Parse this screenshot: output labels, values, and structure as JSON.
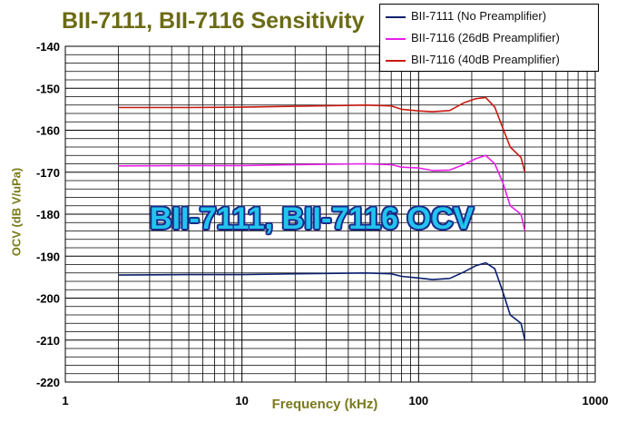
{
  "chart_data": {
    "type": "line",
    "title": "BII-7111, BII-7116 Sensitivity",
    "xlabel": "Frequency (kHz)",
    "ylabel": "OCV (dB V/uPa)",
    "annotation": "BII-7111, BII-7116 OCV",
    "x_scale": "log",
    "xlim": [
      1,
      1000
    ],
    "ylim": [
      -220,
      -140
    ],
    "x_ticks": [
      "1",
      "10",
      "100",
      "1000"
    ],
    "y_ticks": [
      "-140",
      "-150",
      "-160",
      "-170",
      "-180",
      "-190",
      "-200",
      "-210",
      "-220"
    ],
    "grid": true,
    "legend_position": "top-right",
    "series": [
      {
        "name": "BII-7111 (No Preamplifier)",
        "color": "#0a1f6e",
        "x": [
          2,
          5,
          10,
          20,
          50,
          70,
          80,
          100,
          120,
          150,
          180,
          210,
          240,
          270,
          300,
          330,
          380,
          400
        ],
        "y": [
          -194.5,
          -194.4,
          -194.4,
          -194.2,
          -194.0,
          -194.2,
          -194.8,
          -195.2,
          -195.6,
          -195.3,
          -193.8,
          -192.3,
          -191.6,
          -193.0,
          -198.5,
          -204.0,
          -206.0,
          -210.0
        ]
      },
      {
        "name": "BII-7116 (26dB Preamplifier)",
        "color": "#e81ee8",
        "x": [
          2,
          5,
          10,
          20,
          50,
          70,
          80,
          100,
          120,
          150,
          180,
          210,
          240,
          270,
          300,
          330,
          380,
          400
        ],
        "y": [
          -168.5,
          -168.4,
          -168.4,
          -168.2,
          -168.0,
          -168.2,
          -168.8,
          -169.0,
          -169.6,
          -169.5,
          -168.2,
          -166.8,
          -166.0,
          -168.0,
          -172.5,
          -178.0,
          -180.0,
          -184.0
        ]
      },
      {
        "name": "BII-7116 (40dB Preamplifier)",
        "color": "#c81a10",
        "x": [
          2,
          5,
          10,
          20,
          50,
          70,
          80,
          100,
          120,
          150,
          180,
          210,
          240,
          270,
          300,
          330,
          380,
          400
        ],
        "y": [
          -154.6,
          -154.6,
          -154.5,
          -154.3,
          -154.0,
          -154.2,
          -155.0,
          -155.4,
          -155.6,
          -155.3,
          -153.5,
          -152.5,
          -152.2,
          -154.5,
          -159.5,
          -164.0,
          -166.5,
          -170.0
        ]
      }
    ]
  }
}
